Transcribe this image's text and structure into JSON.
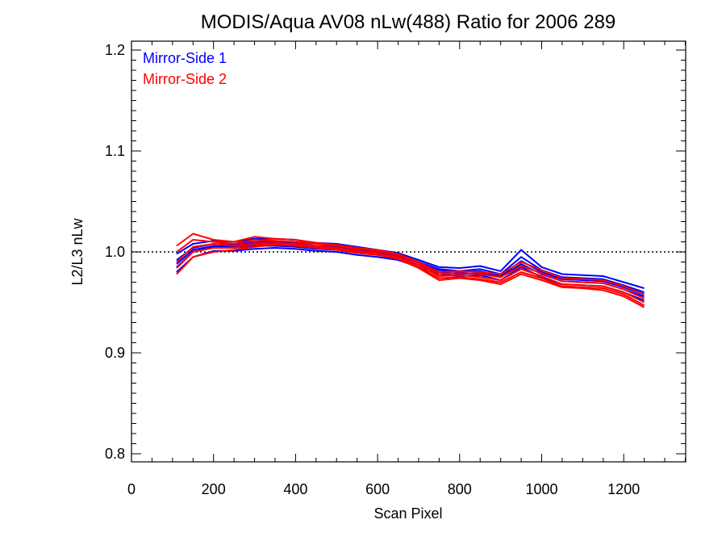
{
  "chart_data": {
    "type": "line",
    "title": "MODIS/Aqua AV08 nLw(488) Ratio for 2006 289",
    "xlabel": "Scan Pixel",
    "ylabel": "L2/L3 nLw",
    "xlim": [
      0,
      1354
    ],
    "ylim": [
      0.8,
      1.2
    ],
    "x_ticks": [
      "0",
      "200",
      "400",
      "600",
      "800",
      "1000",
      "1200"
    ],
    "y_ticks": [
      "0.8",
      "0.9",
      "1.0",
      "1.1",
      "1.2"
    ],
    "reference_line": 1.0,
    "legend_placement": "top-left",
    "x": [
      110,
      150,
      200,
      250,
      300,
      350,
      400,
      450,
      500,
      550,
      600,
      650,
      700,
      750,
      800,
      850,
      900,
      950,
      1000,
      1050,
      1100,
      1150,
      1200,
      1250
    ],
    "series": [
      {
        "name": "Mirror-Side 1",
        "color": "#0000ff",
        "lines": [
          [
            0.985,
            1.0,
            1.005,
            1.004,
            1.006,
            1.006,
            1.005,
            1.003,
            1.002,
            0.999,
            0.997,
            0.994,
            0.987,
            0.98,
            0.978,
            0.979,
            0.975,
            0.988,
            0.978,
            0.971,
            0.97,
            0.969,
            0.963,
            0.956
          ],
          [
            0.992,
            1.004,
            1.008,
            1.007,
            1.01,
            1.01,
            1.009,
            1.006,
            1.005,
            1.002,
            1.0,
            0.997,
            0.99,
            0.983,
            0.981,
            0.983,
            0.978,
            0.995,
            0.982,
            0.975,
            0.974,
            0.973,
            0.967,
            0.96
          ],
          [
            0.998,
            1.008,
            1.011,
            1.01,
            1.013,
            1.013,
            1.012,
            1.009,
            1.008,
            1.005,
            1.002,
            0.999,
            0.992,
            0.985,
            0.984,
            0.986,
            0.981,
            1.002,
            0.985,
            0.978,
            0.977,
            0.976,
            0.97,
            0.964
          ],
          [
            0.98,
            0.995,
            1.001,
            1.001,
            1.003,
            1.004,
            1.003,
            1.001,
            1.0,
            0.997,
            0.995,
            0.992,
            0.985,
            0.978,
            0.976,
            0.977,
            0.972,
            0.985,
            0.975,
            0.968,
            0.967,
            0.966,
            0.96,
            0.952
          ],
          [
            0.988,
            1.002,
            1.006,
            1.005,
            1.008,
            1.008,
            1.007,
            1.005,
            1.004,
            1.001,
            0.999,
            0.996,
            0.989,
            0.982,
            0.98,
            0.981,
            0.976,
            0.991,
            0.98,
            0.973,
            0.972,
            0.971,
            0.965,
            0.958
          ]
        ]
      },
      {
        "name": "Mirror-Side 2",
        "color": "#ff0000",
        "lines": [
          [
            0.978,
            0.995,
            1.0,
            1.002,
            1.005,
            1.007,
            1.006,
            1.004,
            1.002,
            0.999,
            0.997,
            0.993,
            0.984,
            0.972,
            0.974,
            0.972,
            0.968,
            0.978,
            0.972,
            0.965,
            0.964,
            0.962,
            0.956,
            0.945
          ],
          [
            0.99,
            1.005,
            1.008,
            1.006,
            1.009,
            1.009,
            1.008,
            1.006,
            1.004,
            1.001,
            0.999,
            0.995,
            0.987,
            0.976,
            0.977,
            0.975,
            0.972,
            0.983,
            0.976,
            0.968,
            0.967,
            0.966,
            0.96,
            0.95
          ],
          [
            1.0,
            1.012,
            1.01,
            1.008,
            1.012,
            1.011,
            1.01,
            1.008,
            1.006,
            1.003,
            1.001,
            0.997,
            0.989,
            0.978,
            0.979,
            0.978,
            0.975,
            0.986,
            0.979,
            0.971,
            0.97,
            0.969,
            0.963,
            0.954
          ],
          [
            1.006,
            1.018,
            1.012,
            1.01,
            1.015,
            1.013,
            1.012,
            1.009,
            1.007,
            1.004,
            1.002,
            0.998,
            0.99,
            0.98,
            0.981,
            0.98,
            0.978,
            0.99,
            0.982,
            0.974,
            0.973,
            0.972,
            0.966,
            0.958
          ],
          [
            0.984,
            1.0,
            1.004,
            1.004,
            1.007,
            1.008,
            1.007,
            1.005,
            1.003,
            1.0,
            0.998,
            0.994,
            0.985,
            0.974,
            0.975,
            0.973,
            0.97,
            0.98,
            0.974,
            0.966,
            0.965,
            0.964,
            0.958,
            0.947
          ]
        ]
      }
    ]
  }
}
